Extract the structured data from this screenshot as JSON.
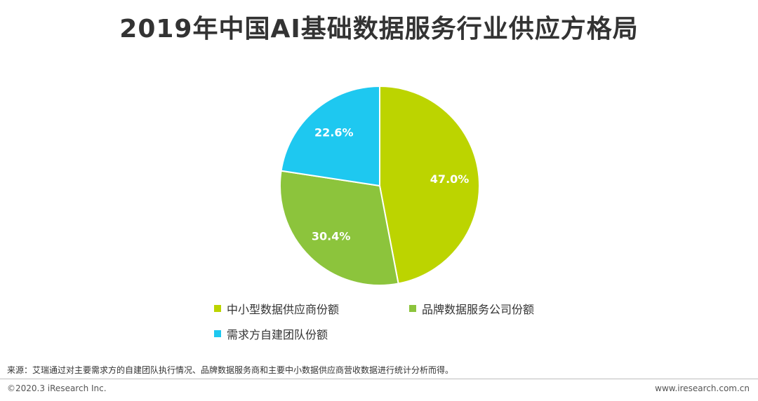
{
  "title": "2019年中国AI基础数据服务行业供应方格局",
  "chart_data": {
    "type": "pie",
    "title": "2019年中国AI基础数据服务行业供应方格局",
    "slices": [
      {
        "name": "中小型数据供应商份额",
        "value": 47.0,
        "label": "47.0%",
        "color": "#bcd400"
      },
      {
        "name": "品牌数据服务公司份额",
        "value": 30.4,
        "label": "30.4%",
        "color": "#8cc43c"
      },
      {
        "name": "需求方自建团队份额",
        "value": 22.6,
        "label": "22.6%",
        "color": "#1ec8f0"
      }
    ],
    "legend": "bottom"
  },
  "footer": {
    "source": "来源：艾瑞通过对主要需求方的自建团队执行情况、品牌数据服务商和主要中小数据供应商营收数据进行统计分析而得。",
    "copyright": "©2020.3 iResearch Inc.",
    "website": "www.iresearch.com.cn"
  }
}
